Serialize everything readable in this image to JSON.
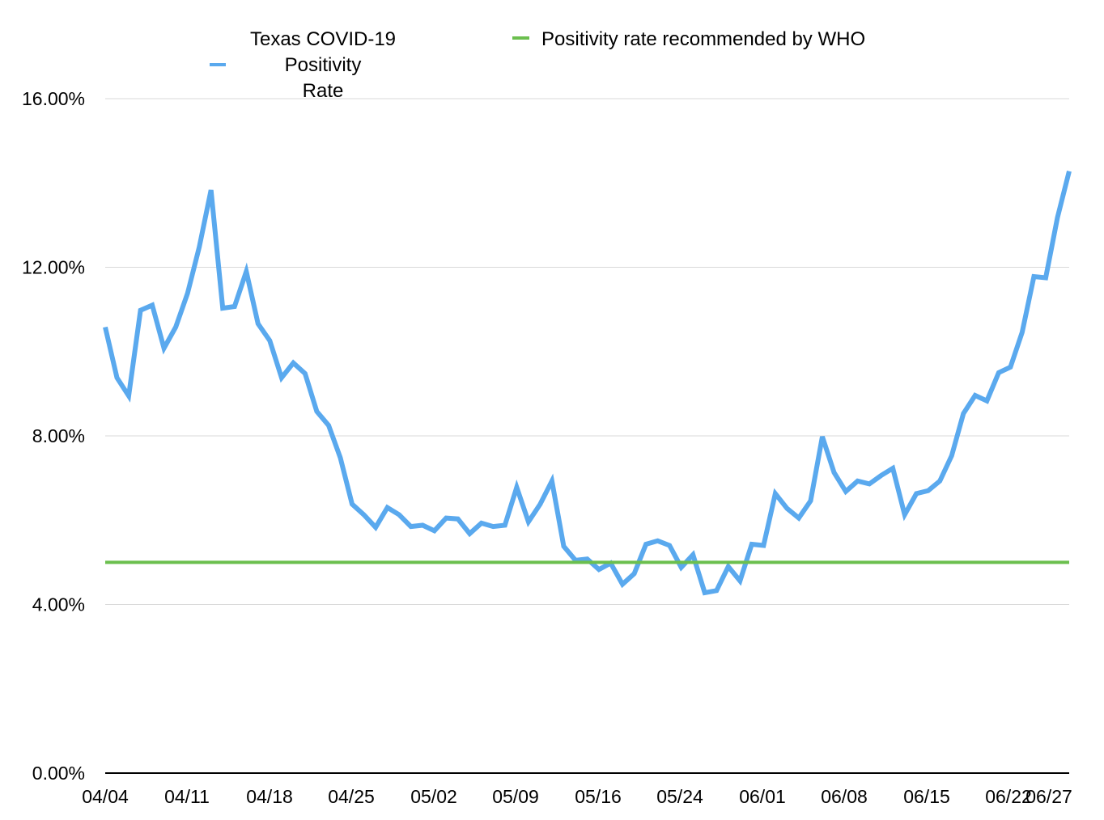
{
  "chart_data": {
    "type": "line",
    "title": "",
    "xlabel": "",
    "ylabel": "",
    "ylim": [
      0,
      16
    ],
    "yticks": [
      "0.00%",
      "4.00%",
      "8.00%",
      "12.00%",
      "16.00%"
    ],
    "ytick_values": [
      0,
      4,
      8,
      12,
      16
    ],
    "grid": true,
    "legend_position": "top",
    "x_tick_labels": [
      "04/04",
      "04/11",
      "04/18",
      "04/25",
      "05/02",
      "05/09",
      "05/16",
      "05/24",
      "06/01",
      "06/08",
      "06/15",
      "06/22",
      "06/27"
    ],
    "series": [
      {
        "name_lines": [
          "Texas COVID-19",
          "Positivity",
          "Rate"
        ],
        "name": "Texas COVID-19 Positivity Rate",
        "color": "#5aa9ee",
        "values": [
          10.58,
          9.38,
          8.95,
          10.98,
          11.1,
          10.08,
          10.58,
          11.38,
          12.48,
          13.83,
          11.03,
          11.07,
          11.9,
          10.66,
          10.26,
          9.38,
          9.73,
          9.48,
          8.58,
          8.25,
          7.48,
          6.38,
          6.13,
          5.83,
          6.3,
          6.13,
          5.85,
          5.88,
          5.75,
          6.05,
          6.03,
          5.68,
          5.93,
          5.85,
          5.88,
          6.78,
          5.96,
          6.38,
          6.93,
          5.38,
          5.05,
          5.08,
          4.83,
          4.98,
          4.48,
          4.73,
          5.43,
          5.51,
          5.4,
          4.88,
          5.18,
          4.28,
          4.33,
          4.9,
          4.56,
          5.43,
          5.4,
          6.63,
          6.28,
          6.05,
          6.46,
          7.98,
          7.13,
          6.68,
          6.93,
          6.86,
          7.06,
          7.23,
          6.13,
          6.63,
          6.7,
          6.93,
          7.53,
          8.53,
          8.96,
          8.83,
          9.5,
          9.63,
          10.46,
          11.78,
          11.75,
          13.18,
          14.28
        ]
      },
      {
        "name_lines": [
          "Positivity rate recommended by WHO"
        ],
        "name": "Positivity rate recommended by WHO",
        "color": "#6bbf4e",
        "constant": 5
      }
    ]
  }
}
